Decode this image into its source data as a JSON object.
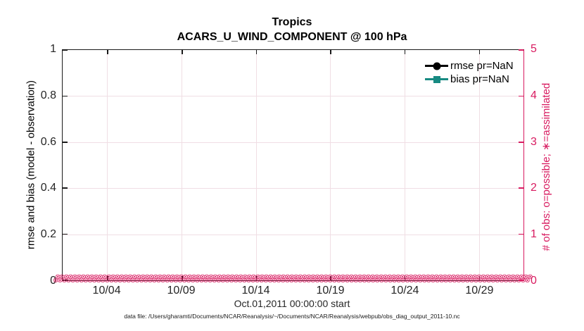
{
  "figure": {
    "title": "Tropics",
    "subtitle": "ACARS_U_WIND_COMPONENT @ 100 hPa",
    "datafile_note": "data file: /Users/gharamti/Documents/NCAR/Reanalysis/~/Documents/NCAR/Reanalysis/webpub/obs_diag_output_2011-10.nc"
  },
  "colors": {
    "accent_pink": "#D81B60",
    "grid_pink": "#F0DEE4",
    "teal": "#178A82",
    "axis_black": "#1A1A1A"
  },
  "legend": {
    "entries": [
      {
        "label": "rmse pr=NaN",
        "color": "#000000",
        "marker": "circle"
      },
      {
        "label": "bias pr=NaN",
        "color": "#178A82",
        "marker": "square"
      }
    ]
  },
  "chart_data": {
    "type": "line",
    "title": "Tropics",
    "subtitle": "ACARS_U_WIND_COMPONENT @ 100 hPa",
    "xlabel": "Oct.01,2011 00:00:00 start",
    "ylabel_left": "rmse and bias (model - observation)",
    "ylabel_right": "# of obs: o=possible; ∗=assimilated",
    "x_range_days": 31,
    "x_tick_days": [
      3,
      8,
      13,
      18,
      23,
      28
    ],
    "x_tick_labels": [
      "10/04",
      "10/09",
      "10/14",
      "10/19",
      "10/24",
      "10/29"
    ],
    "ylim_left": [
      0,
      1
    ],
    "yticks_left": [
      "0",
      "0.2",
      "0.4",
      "0.6",
      "0.8",
      "1"
    ],
    "ylim_right": [
      0,
      5
    ],
    "yticks_right": [
      "0",
      "1",
      "2",
      "3",
      "4",
      "5"
    ],
    "grid": true,
    "legend_position": "top-right-inside",
    "series": [
      {
        "name": "rmse pr=NaN",
        "color": "#000000",
        "marker": "circle",
        "values": "NaN (no curve plotted)"
      },
      {
        "name": "bias pr=NaN",
        "color": "#178A82",
        "marker": "square",
        "values": "NaN (no curve plotted)"
      }
    ],
    "obs_markers": {
      "glyph": "⊗",
      "color": "#D81B60",
      "value": 0,
      "note": "possible (o) and assimilated (∗) obs counts plotted at 0 across the entire month",
      "per_row": 112,
      "rows": 2
    }
  }
}
